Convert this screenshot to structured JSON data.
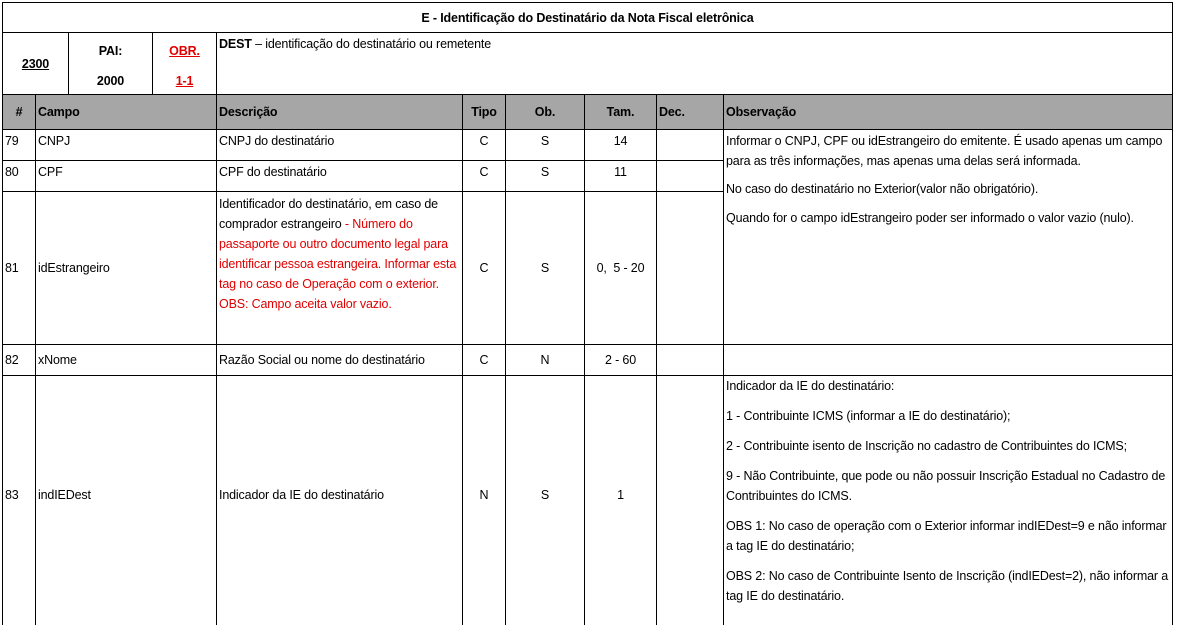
{
  "title": "E - Identificação do Destinatário da Nota Fiscal eletrônica",
  "group": {
    "id": "2300",
    "pai_label": "PAI:",
    "pai_value": "2000",
    "obr_label": "OBR.",
    "obr_value": "1-1",
    "tag": "DEST",
    "description": " – identificação do destinatário ou remetente"
  },
  "columns": [
    "#",
    "Campo",
    "Descrição",
    "Tipo",
    "Ob.",
    "Tam.",
    "Dec.",
    "Observação"
  ],
  "rows": [
    {
      "num": "79",
      "campo": "CNPJ",
      "descricao": "CNPJ do destinatário",
      "tipo": "C",
      "ob": "S",
      "tam": "14",
      "dec": ""
    },
    {
      "num": "80",
      "campo": "CPF",
      "descricao": "CPF do destinatário",
      "tipo": "C",
      "ob": "S",
      "tam": "11",
      "dec": ""
    },
    {
      "num": "81",
      "campo": "idEstrangeiro",
      "descricao": "Identificador do destinatário, em caso de comprador estrangeiro",
      "descricao_red": " - Número do passaporte ou outro documento legal para identificar pessoa estrangeira. Informar esta tag no caso de Operação com o exterior. OBS: Campo aceita valor vazio.",
      "tipo": "C",
      "ob": "S",
      "tam": "0,  5 - 20",
      "dec": ""
    },
    {
      "num": "82",
      "campo": "xNome",
      "descricao": "Razão Social ou nome do destinatário",
      "tipo": "C",
      "ob": "N",
      "tam": "2 - 60",
      "dec": ""
    },
    {
      "num": "83",
      "campo": "indIEDest",
      "descricao": "Indicador da IE do destinatário",
      "tipo": "N",
      "ob": "S",
      "tam": "1",
      "dec": ""
    }
  ],
  "obs_79_81": [
    "Informar o CNPJ, CPF ou idEstrangeiro do emitente. É usado apenas um campo para as três informações, mas apenas uma delas será informada.",
    "No caso do destinatário no Exterior(valor não obrigatório).",
    "Quando for o campo idEstrangeiro poder ser informado o valor vazio (nulo)."
  ],
  "obs_82": "",
  "obs_83": [
    "Indicador da IE do destinatário:",
    "1 - Contribuinte ICMS (informar a IE do destinatário);",
    "2 - Contribuinte isento de Inscrição no cadastro de Contribuintes do ICMS;",
    "9 - Não Contribuinte, que pode ou não possuir Inscrição Estadual no Cadastro de Contribuintes do ICMS.",
    "OBS 1: No caso de operação com o Exterior informar indIEDest=9 e não informar a tag IE do destinatário;",
    "OBS 2: No caso de Contribuinte Isento de Inscrição (indIEDest=2), não informar a tag IE do destinatário."
  ],
  "colors": {
    "header_bg": "#a6a6a6",
    "red": "#e00000"
  }
}
